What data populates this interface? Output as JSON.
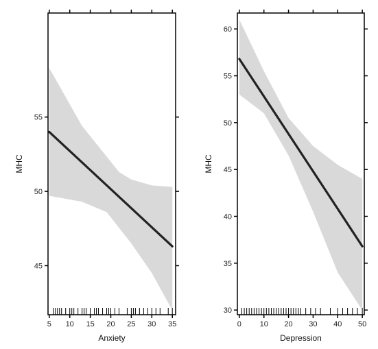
{
  "chart_data": [
    {
      "type": "line",
      "xlabel": "Anxiety",
      "ylabel": "MHC",
      "xlim": [
        4.7,
        35.8
      ],
      "ylim": [
        41.7,
        62.0
      ],
      "x_ticks": [
        5,
        10,
        15,
        20,
        25,
        30,
        35
      ],
      "y_ticks": [
        45,
        50,
        55
      ],
      "fit": {
        "x": [
          5,
          35
        ],
        "y": [
          54.0,
          46.3
        ]
      },
      "ci_upper": {
        "x": [
          5,
          13,
          22,
          25,
          30,
          35
        ],
        "y": [
          58.3,
          54.4,
          51.3,
          50.8,
          50.4,
          50.3
        ]
      },
      "ci_lower": {
        "x": [
          5,
          13,
          19,
          25,
          30,
          35
        ],
        "y": [
          49.7,
          49.3,
          48.6,
          46.5,
          44.5,
          42.0
        ]
      },
      "rug": [
        6,
        6.5,
        7,
        7.5,
        8,
        9,
        10,
        10.5,
        11,
        12,
        13,
        13.5,
        14,
        15,
        16,
        16.5,
        17,
        18,
        19,
        19.5,
        20,
        21,
        22,
        24,
        25,
        25.5,
        26,
        27,
        28,
        29,
        30,
        31,
        32,
        34,
        35
      ],
      "colors": {
        "fit": "#222222",
        "band": "#d9d9d9",
        "frame": "#000000"
      }
    },
    {
      "type": "line",
      "xlabel": "Depression",
      "ylabel": "MHC",
      "xlim": [
        -0.8,
        50.8
      ],
      "ylim": [
        29.5,
        61.7
      ],
      "x_ticks": [
        0,
        10,
        20,
        30,
        40,
        50
      ],
      "y_ticks": [
        30,
        35,
        40,
        45,
        50,
        55,
        60
      ],
      "fit": {
        "x": [
          0,
          50
        ],
        "y": [
          56.8,
          36.8
        ]
      },
      "ci_upper": {
        "x": [
          0,
          10,
          20,
          30,
          40,
          50
        ],
        "y": [
          61.0,
          55.5,
          50.5,
          47.5,
          45.5,
          44.0
        ]
      },
      "ci_lower": {
        "x": [
          0,
          10,
          20,
          30,
          40,
          50
        ],
        "y": [
          53.0,
          51.0,
          46.5,
          40.5,
          34.0,
          30.0
        ]
      },
      "rug": [
        1,
        2,
        3,
        4,
        5,
        6,
        7,
        8,
        9,
        10,
        11,
        12,
        13,
        14,
        15,
        16,
        17,
        18,
        19,
        20,
        21,
        22,
        23,
        24,
        25,
        27,
        29,
        31,
        33,
        37,
        40,
        42,
        44,
        46,
        48,
        50
      ],
      "colors": {
        "fit": "#222222",
        "band": "#d9d9d9",
        "frame": "#000000"
      }
    }
  ]
}
